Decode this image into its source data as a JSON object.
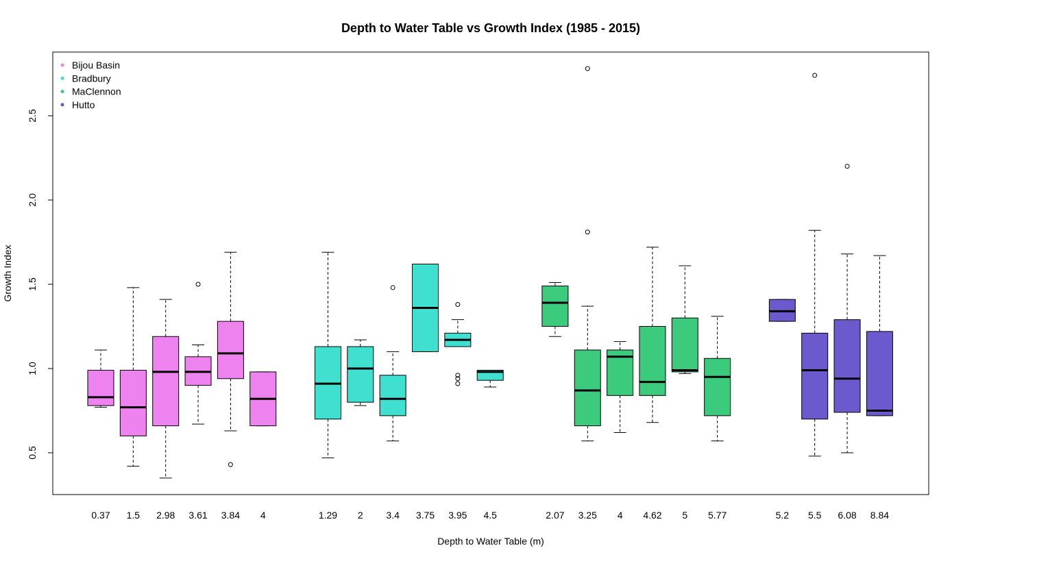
{
  "chart_data": {
    "type": "boxplot",
    "title": "Depth to Water Table vs Growth Index (1985 - 2015)",
    "xlabel": "Depth to Water Table (m)",
    "ylabel": "Growth Index",
    "ylim": [
      0.25,
      2.87
    ],
    "yticks": [
      0.5,
      1.0,
      1.5,
      2.0,
      2.5
    ],
    "ytick_labels": [
      "0.5",
      "1.0",
      "1.5",
      "2.0",
      "2.5"
    ],
    "legend_position": "top-left",
    "grid": false,
    "series": [
      {
        "name": "Bijou Basin",
        "color": "#EE82EE",
        "boxes": [
          {
            "label": "0.37",
            "whisker_low": 0.77,
            "q1": 0.78,
            "median": 0.83,
            "q3": 0.99,
            "whisker_high": 1.11,
            "outliers": []
          },
          {
            "label": "1.5",
            "whisker_low": 0.42,
            "q1": 0.6,
            "median": 0.77,
            "q3": 0.99,
            "whisker_high": 1.48,
            "outliers": []
          },
          {
            "label": "2.98",
            "whisker_low": 0.35,
            "q1": 0.66,
            "median": 0.98,
            "q3": 1.19,
            "whisker_high": 1.41,
            "outliers": []
          },
          {
            "label": "3.61",
            "whisker_low": 0.67,
            "q1": 0.9,
            "median": 0.98,
            "q3": 1.07,
            "whisker_high": 1.14,
            "outliers": [
              1.5
            ]
          },
          {
            "label": "3.84",
            "whisker_low": 0.63,
            "q1": 0.94,
            "median": 1.09,
            "q3": 1.28,
            "whisker_high": 1.69,
            "outliers": [
              0.43
            ]
          },
          {
            "label": "4",
            "whisker_low": 0.66,
            "q1": 0.66,
            "median": 0.82,
            "q3": 0.98,
            "whisker_high": 0.98,
            "outliers": []
          }
        ]
      },
      {
        "name": "Bradbury",
        "color": "#40E0D0",
        "boxes": [
          {
            "label": "1.29",
            "whisker_low": 0.47,
            "q1": 0.7,
            "median": 0.91,
            "q3": 1.13,
            "whisker_high": 1.69,
            "outliers": []
          },
          {
            "label": "2",
            "whisker_low": 0.78,
            "q1": 0.8,
            "median": 1.0,
            "q3": 1.13,
            "whisker_high": 1.17,
            "outliers": []
          },
          {
            "label": "3.4",
            "whisker_low": 0.57,
            "q1": 0.72,
            "median": 0.82,
            "q3": 0.96,
            "whisker_high": 1.1,
            "outliers": [
              1.48
            ]
          },
          {
            "label": "3.75",
            "whisker_low": 1.1,
            "q1": 1.1,
            "median": 1.36,
            "q3": 1.62,
            "whisker_high": 1.62,
            "outliers": []
          },
          {
            "label": "3.95",
            "whisker_low": 1.13,
            "q1": 1.13,
            "median": 1.17,
            "q3": 1.21,
            "whisker_high": 1.29,
            "outliers": [
              1.38,
              0.96,
              0.94,
              0.91
            ]
          },
          {
            "label": "4.5",
            "whisker_low": 0.89,
            "q1": 0.93,
            "median": 0.98,
            "q3": 0.99,
            "whisker_high": 0.99,
            "outliers": []
          }
        ]
      },
      {
        "name": "MaClennon",
        "color": "#3CCB7C",
        "boxes": [
          {
            "label": "2.07",
            "whisker_low": 1.19,
            "q1": 1.25,
            "median": 1.39,
            "q3": 1.49,
            "whisker_high": 1.51,
            "outliers": []
          },
          {
            "label": "3.25",
            "whisker_low": 0.57,
            "q1": 0.66,
            "median": 0.87,
            "q3": 1.11,
            "whisker_high": 1.37,
            "outliers": [
              1.81,
              2.78
            ]
          },
          {
            "label": "4",
            "whisker_low": 0.62,
            "q1": 0.84,
            "median": 1.07,
            "q3": 1.11,
            "whisker_high": 1.16,
            "outliers": []
          },
          {
            "label": "4.62",
            "whisker_low": 0.68,
            "q1": 0.84,
            "median": 0.92,
            "q3": 1.25,
            "whisker_high": 1.72,
            "outliers": []
          },
          {
            "label": "5",
            "whisker_low": 0.97,
            "q1": 0.98,
            "median": 0.99,
            "q3": 1.3,
            "whisker_high": 1.61,
            "outliers": []
          },
          {
            "label": "5.77",
            "whisker_low": 0.57,
            "q1": 0.72,
            "median": 0.95,
            "q3": 1.06,
            "whisker_high": 1.31,
            "outliers": []
          }
        ]
      },
      {
        "name": "Hutto",
        "color": "#6A5ACD",
        "boxes": [
          {
            "label": "5.2",
            "whisker_low": 1.28,
            "q1": 1.28,
            "median": 1.34,
            "q3": 1.41,
            "whisker_high": 1.41,
            "outliers": []
          },
          {
            "label": "5.5",
            "whisker_low": 0.48,
            "q1": 0.7,
            "median": 0.99,
            "q3": 1.21,
            "whisker_high": 1.82,
            "outliers": [
              2.74
            ]
          },
          {
            "label": "6.08",
            "whisker_low": 0.5,
            "q1": 0.74,
            "median": 0.94,
            "q3": 1.29,
            "whisker_high": 1.68,
            "outliers": [
              2.2
            ]
          },
          {
            "label": "8.84",
            "whisker_low": 0.72,
            "q1": 0.72,
            "median": 0.75,
            "q3": 1.22,
            "whisker_high": 1.67,
            "outliers": []
          }
        ]
      }
    ]
  }
}
